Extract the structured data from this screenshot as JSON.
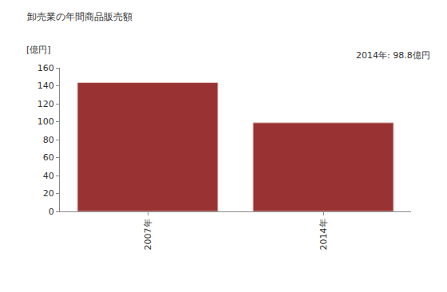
{
  "chart_data": {
    "type": "bar",
    "title": "卸売業の年間商品販売額",
    "y_label": "[億円]",
    "annotation": "2014年: 98.8億円",
    "categories": [
      "2007年",
      "2014年"
    ],
    "values": [
      143.5,
      98.8
    ],
    "color": "#993333",
    "ylim": [
      0,
      160
    ],
    "yticks": [
      0,
      20,
      40,
      60,
      80,
      100,
      120,
      140,
      160
    ],
    "grid": false
  }
}
